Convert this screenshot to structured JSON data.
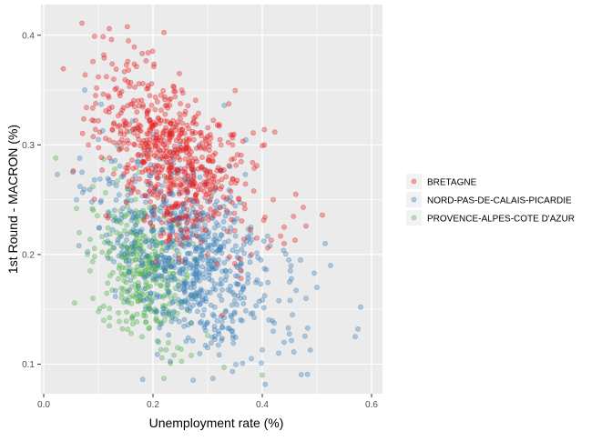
{
  "chart_data": {
    "type": "scatter",
    "title": "",
    "xlabel": "Unemployment rate (%)",
    "ylabel": "1st Round - MACRON (%)",
    "xlim": [
      -0.005,
      0.62
    ],
    "ylim": [
      0.073,
      0.428
    ],
    "x_ticks": [
      0.0,
      0.2,
      0.4,
      0.6
    ],
    "x_tick_labels": [
      "0.0",
      "0.2",
      "0.4",
      "0.6"
    ],
    "y_ticks": [
      0.1,
      0.2,
      0.3,
      0.4
    ],
    "y_tick_labels": [
      "0.1",
      "0.2",
      "0.3",
      "0.4"
    ],
    "grid": true,
    "legend_position": "right",
    "colors": {
      "panel_bg": "#EBEBEB",
      "grid_major": "#FFFFFF",
      "BRETAGNE": "#E41A1C",
      "NORD-PAS-DE-CALAIS-PICARDIE": "#377EB8",
      "PROVENCE-ALPES-COTE D'AZUR": "#4DAF4A"
    },
    "point_alpha": 0.35,
    "series": [
      {
        "name": "BRETAGNE",
        "clusters": [
          {
            "cx": 0.24,
            "cy": 0.285,
            "sx": 0.065,
            "sy": 0.036,
            "r": -0.4,
            "n": 620
          },
          {
            "cx": 0.15,
            "cy": 0.345,
            "sx": 0.028,
            "sy": 0.028,
            "r": 0,
            "n": 50
          }
        ],
        "points": [
          {
            "x": 0.07,
            "y": 0.411
          },
          {
            "x": 0.12,
            "y": 0.406
          },
          {
            "x": 0.093,
            "y": 0.399
          },
          {
            "x": 0.155,
            "y": 0.395
          },
          {
            "x": 0.11,
            "y": 0.382
          },
          {
            "x": 0.09,
            "y": 0.376
          },
          {
            "x": 0.1,
            "y": 0.362
          },
          {
            "x": 0.095,
            "y": 0.345
          },
          {
            "x": 0.1,
            "y": 0.322
          },
          {
            "x": 0.092,
            "y": 0.322
          },
          {
            "x": 0.44,
            "y": 0.225
          },
          {
            "x": 0.475,
            "y": 0.243
          },
          {
            "x": 0.51,
            "y": 0.236
          },
          {
            "x": 0.48,
            "y": 0.226
          },
          {
            "x": 0.44,
            "y": 0.21
          },
          {
            "x": 0.41,
            "y": 0.206
          },
          {
            "x": 0.38,
            "y": 0.2
          },
          {
            "x": 0.46,
            "y": 0.213
          },
          {
            "x": 0.42,
            "y": 0.25
          },
          {
            "x": 0.405,
            "y": 0.234
          },
          {
            "x": 0.39,
            "y": 0.215
          },
          {
            "x": 0.36,
            "y": 0.196
          },
          {
            "x": 0.34,
            "y": 0.198
          },
          {
            "x": 0.23,
            "y": 0.215
          },
          {
            "x": 0.3,
            "y": 0.2
          }
        ]
      },
      {
        "name": "NORD-PAS-DE-CALAIS-PICARDIE",
        "clusters": [
          {
            "cx": 0.265,
            "cy": 0.2,
            "sx": 0.075,
            "sy": 0.045,
            "r": -0.45,
            "n": 740
          }
        ],
        "points": [
          {
            "x": 0.075,
            "y": 0.35
          },
          {
            "x": 0.025,
            "y": 0.273
          },
          {
            "x": 0.07,
            "y": 0.275
          },
          {
            "x": 0.06,
            "y": 0.25
          },
          {
            "x": 0.1,
            "y": 0.305
          },
          {
            "x": 0.105,
            "y": 0.337
          },
          {
            "x": 0.58,
            "y": 0.152
          },
          {
            "x": 0.575,
            "y": 0.132
          },
          {
            "x": 0.57,
            "y": 0.125
          },
          {
            "x": 0.525,
            "y": 0.19
          },
          {
            "x": 0.515,
            "y": 0.21
          },
          {
            "x": 0.495,
            "y": 0.183
          },
          {
            "x": 0.48,
            "y": 0.16
          },
          {
            "x": 0.455,
            "y": 0.145
          },
          {
            "x": 0.44,
            "y": 0.12
          },
          {
            "x": 0.45,
            "y": 0.175
          },
          {
            "x": 0.43,
            "y": 0.11
          },
          {
            "x": 0.4,
            "y": 0.113
          },
          {
            "x": 0.38,
            "y": 0.105
          },
          {
            "x": 0.42,
            "y": 0.13
          },
          {
            "x": 0.36,
            "y": 0.16
          },
          {
            "x": 0.32,
            "y": 0.13
          },
          {
            "x": 0.3,
            "y": 0.115
          },
          {
            "x": 0.47,
            "y": 0.195
          },
          {
            "x": 0.5,
            "y": 0.17
          }
        ]
      },
      {
        "name": "PROVENCE-ALPES-COTE D'AZUR",
        "clusters": [
          {
            "cx": 0.18,
            "cy": 0.19,
            "sx": 0.04,
            "sy": 0.032,
            "r": -0.2,
            "n": 330
          }
        ],
        "points": [
          {
            "x": 0.022,
            "y": 0.288
          },
          {
            "x": 0.06,
            "y": 0.242
          },
          {
            "x": 0.065,
            "y": 0.22
          },
          {
            "x": 0.08,
            "y": 0.2
          },
          {
            "x": 0.085,
            "y": 0.185
          },
          {
            "x": 0.09,
            "y": 0.16
          },
          {
            "x": 0.1,
            "y": 0.148
          },
          {
            "x": 0.11,
            "y": 0.14
          },
          {
            "x": 0.12,
            "y": 0.135
          },
          {
            "x": 0.13,
            "y": 0.278
          },
          {
            "x": 0.135,
            "y": 0.267
          },
          {
            "x": 0.11,
            "y": 0.287
          },
          {
            "x": 0.16,
            "y": 0.128
          },
          {
            "x": 0.18,
            "y": 0.125
          },
          {
            "x": 0.22,
            "y": 0.087
          },
          {
            "x": 0.21,
            "y": 0.12
          },
          {
            "x": 0.245,
            "y": 0.115
          },
          {
            "x": 0.27,
            "y": 0.108
          },
          {
            "x": 0.33,
            "y": 0.097
          },
          {
            "x": 0.4,
            "y": 0.09
          },
          {
            "x": 0.3,
            "y": 0.126
          },
          {
            "x": 0.26,
            "y": 0.157
          },
          {
            "x": 0.175,
            "y": 0.275
          },
          {
            "x": 0.155,
            "y": 0.26
          },
          {
            "x": 0.09,
            "y": 0.262
          }
        ]
      }
    ]
  }
}
